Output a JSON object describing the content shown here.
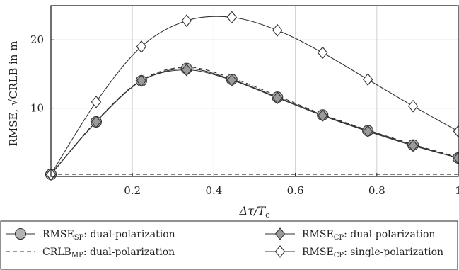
{
  "chart_data": {
    "type": "line",
    "xlabel": "Δτ/T",
    "xlabel_sub": "c",
    "ylabel": "RMSE, √CRLB in m",
    "xlim": [
      0,
      1
    ],
    "ylim": [
      0,
      25
    ],
    "xticks": [
      0.2,
      0.4,
      0.6,
      0.8,
      1
    ],
    "xtick_labels": [
      "0.2",
      "0.4",
      "0.6",
      "0.8",
      "1"
    ],
    "yticks": [
      10,
      20
    ],
    "ytick_labels": [
      "10",
      "20"
    ],
    "grid": true,
    "legend_position": "bottom",
    "series": [
      {
        "name": "RMSE",
        "sub": "SP",
        "suffix": ": dual-polarization",
        "marker": "circle",
        "line": "solid",
        "x": [
          0,
          0.111,
          0.222,
          0.333,
          0.444,
          0.556,
          0.667,
          0.778,
          0.889,
          1.0
        ],
        "y": [
          0.3,
          8.0,
          14.0,
          15.8,
          14.2,
          11.6,
          9.0,
          6.7,
          4.6,
          2.7
        ]
      },
      {
        "name": "CRLB",
        "sub": "MP",
        "suffix": ": dual-polarization",
        "marker": "none",
        "line": "dashed",
        "x": [
          0,
          0.111,
          0.222,
          0.333,
          0.444,
          0.556,
          0.667,
          0.778,
          0.889,
          1.0
        ],
        "y": [
          0.3,
          8.1,
          14.1,
          16.0,
          14.4,
          11.8,
          9.1,
          6.8,
          4.7,
          2.8
        ]
      },
      {
        "name": "RMSE",
        "sub": "CP",
        "suffix": ": dual-polarization",
        "marker": "diamond-filled",
        "line": "solid",
        "x": [
          0,
          0.111,
          0.222,
          0.333,
          0.444,
          0.556,
          0.667,
          0.778,
          0.889,
          1.0
        ],
        "y": [
          0.3,
          8.0,
          14.0,
          15.6,
          14.1,
          11.5,
          8.9,
          6.6,
          4.5,
          2.7
        ]
      },
      {
        "name": "RMSE",
        "sub": "CP",
        "suffix": ": single-polarization",
        "marker": "diamond-open",
        "line": "solid",
        "x": [
          0,
          0.111,
          0.222,
          0.333,
          0.444,
          0.556,
          0.667,
          0.778,
          0.889,
          1.0
        ],
        "y": [
          0.3,
          10.9,
          19.0,
          22.8,
          23.3,
          21.4,
          18.1,
          14.2,
          10.3,
          6.6
        ]
      }
    ],
    "baseline": {
      "line": "dashed",
      "y": 0.3
    }
  }
}
